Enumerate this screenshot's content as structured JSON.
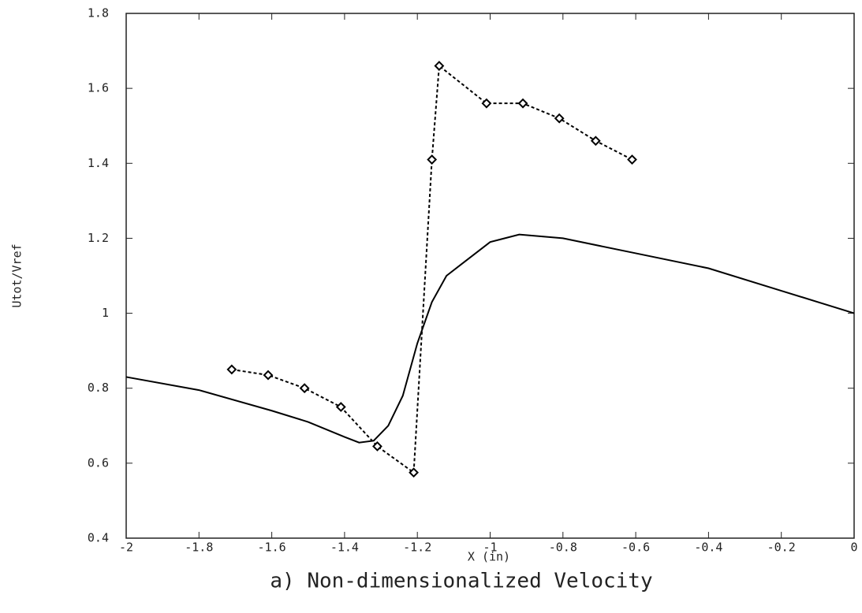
{
  "chart_data": {
    "type": "line",
    "caption": "a)  Non-dimensionalized Velocity",
    "xlabel": "X (in)",
    "ylabel": "Utot/Vref",
    "xlim": [
      -2,
      0
    ],
    "xticks": [
      -2,
      -1.8,
      -1.6,
      -1.4,
      -1.2,
      -1,
      -0.8,
      -0.6,
      -0.4,
      -0.2,
      0
    ],
    "ylim": [
      0.4,
      1.8
    ],
    "yticks": [
      0.4,
      0.6,
      0.8,
      1,
      1.2,
      1.4,
      1.6,
      1.8
    ],
    "series": [
      {
        "color": "#000000",
        "dash": false,
        "markers": false,
        "x": [
          -2,
          -1.8,
          -1.6,
          -1.5,
          -1.4,
          -1.36,
          -1.32,
          -1.28,
          -1.24,
          -1.2,
          -1.16,
          -1.12,
          -1.08,
          -1,
          -0.92,
          -0.8,
          -0.6,
          -0.4,
          -0.2,
          0
        ],
        "values": [
          0.83,
          0.795,
          0.74,
          0.71,
          0.67,
          0.655,
          0.66,
          0.7,
          0.78,
          0.92,
          1.03,
          1.1,
          1.13,
          1.19,
          1.21,
          1.2,
          1.16,
          1.12,
          1.06,
          1.0
        ]
      },
      {
        "color": "#000000",
        "dash": true,
        "markers": true,
        "x": [
          -1.71,
          -1.61,
          -1.51,
          -1.41,
          -1.31,
          -1.21,
          -1.16,
          -1.14,
          -1.01,
          -0.91,
          -0.81,
          -0.71,
          -0.61
        ],
        "values": [
          0.85,
          0.835,
          0.8,
          0.75,
          0.645,
          0.575,
          1.41,
          1.66,
          1.56,
          1.56,
          1.52,
          1.46,
          1.41
        ]
      }
    ]
  }
}
